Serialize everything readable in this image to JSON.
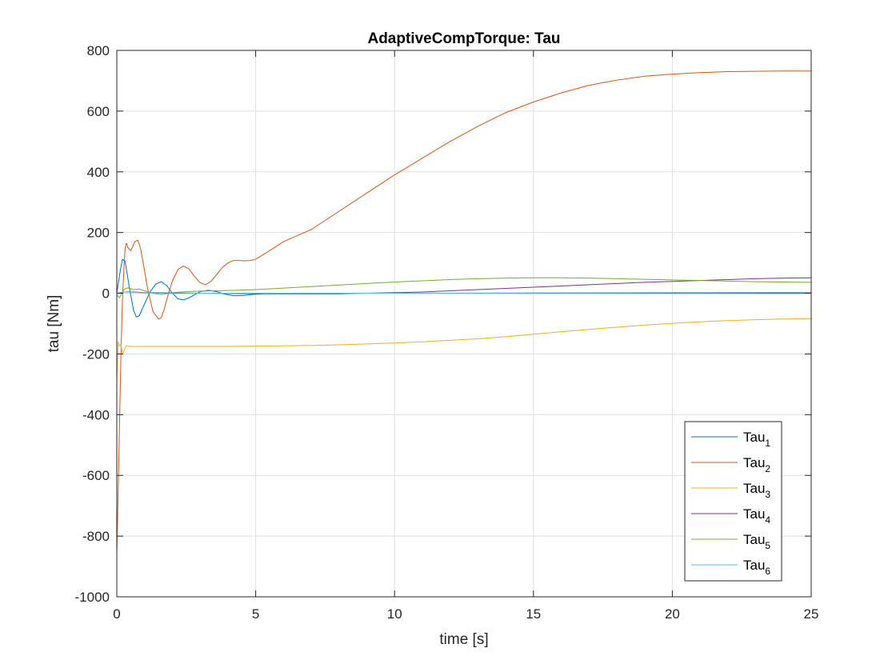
{
  "chart_data": {
    "type": "line",
    "title": "AdaptiveCompTorque: Tau",
    "xlabel": "time [s]",
    "ylabel": "tau [Nm]",
    "xlim": [
      0,
      25
    ],
    "ylim": [
      -1000,
      800
    ],
    "xticks": [
      0,
      5,
      10,
      15,
      20,
      25
    ],
    "yticks": [
      -1000,
      -800,
      -600,
      -400,
      -200,
      0,
      200,
      400,
      600,
      800
    ],
    "grid": true,
    "legend_position": "bottom-right",
    "series": [
      {
        "name": "Tau",
        "subscript": "1",
        "color": "#0072BD",
        "x": [
          0,
          0.1,
          0.2,
          0.3,
          0.45,
          0.6,
          0.7,
          0.8,
          1.0,
          1.2,
          1.4,
          1.6,
          1.8,
          2.0,
          2.2,
          2.4,
          2.6,
          2.8,
          3.0,
          3.3,
          3.6,
          3.9,
          4.2,
          4.5,
          5.0,
          5.5,
          6.0,
          7,
          10,
          15,
          20,
          25
        ],
        "y": [
          0,
          60,
          112,
          105,
          20,
          -55,
          -78,
          -75,
          -35,
          5,
          30,
          38,
          25,
          0,
          -18,
          -22,
          -15,
          -5,
          5,
          10,
          5,
          -3,
          -8,
          -8,
          -3,
          0,
          0,
          0,
          0,
          0,
          0,
          0
        ]
      },
      {
        "name": "Tau",
        "subscript": "2",
        "color": "#D95319",
        "x": [
          0,
          0.05,
          0.1,
          0.15,
          0.2,
          0.25,
          0.3,
          0.35,
          0.4,
          0.5,
          0.55,
          0.65,
          0.75,
          0.85,
          0.95,
          1.1,
          1.3,
          1.5,
          1.6,
          1.7,
          1.8,
          2.0,
          2.2,
          2.4,
          2.6,
          2.8,
          3.0,
          3.2,
          3.4,
          3.6,
          3.8,
          4.0,
          4.2,
          4.4,
          4.6,
          4.8,
          5.0,
          5.5,
          6.0,
          6.5,
          7.0,
          8,
          9,
          10,
          11,
          12,
          13,
          14,
          15,
          16,
          17,
          18,
          19,
          20,
          21,
          22,
          23,
          24,
          25
        ],
        "y": [
          -860,
          -650,
          -420,
          -200,
          -30,
          70,
          150,
          165,
          150,
          140,
          150,
          170,
          175,
          150,
          100,
          20,
          -60,
          -85,
          -80,
          -55,
          -20,
          40,
          78,
          90,
          80,
          55,
          35,
          28,
          40,
          62,
          85,
          100,
          108,
          108,
          107,
          108,
          112,
          140,
          170,
          190,
          210,
          270,
          330,
          390,
          445,
          500,
          550,
          595,
          630,
          660,
          685,
          702,
          715,
          722,
          727,
          730,
          731,
          732,
          732
        ]
      },
      {
        "name": "Tau",
        "subscript": "3",
        "color": "#EDB120",
        "x": [
          0,
          0.05,
          0.1,
          0.15,
          0.2,
          0.25,
          0.3,
          0.35,
          0.45,
          0.6,
          0.8,
          1,
          2,
          3,
          4,
          5,
          6,
          7,
          8,
          9,
          10,
          11,
          12,
          13,
          14,
          15,
          16,
          17,
          18,
          19,
          20,
          21,
          22,
          23,
          24,
          25
        ],
        "y": [
          -290,
          -160,
          -175,
          -168,
          -200,
          -192,
          -178,
          -173,
          -175,
          -175,
          -175,
          -175,
          -175,
          -175,
          -175,
          -174,
          -173,
          -172,
          -170,
          -167,
          -164,
          -160,
          -155,
          -150,
          -143,
          -135,
          -127,
          -119,
          -112,
          -105,
          -99,
          -94,
          -90,
          -87,
          -85,
          -84
        ]
      },
      {
        "name": "Tau",
        "subscript": "4",
        "color": "#7E2F8E",
        "x": [
          0,
          0.2,
          0.4,
          0.6,
          1,
          2,
          3,
          4,
          5,
          6,
          7,
          8,
          9,
          10,
          11,
          12,
          13,
          14,
          15,
          16,
          17,
          18,
          19,
          20,
          21,
          22,
          23,
          24,
          25
        ],
        "y": [
          0,
          3,
          5,
          4,
          2,
          1,
          0,
          -1,
          -2,
          -2,
          -2,
          -2,
          0,
          2,
          4,
          8,
          12,
          16,
          20,
          24,
          28,
          32,
          36,
          39,
          42,
          45,
          48,
          50,
          51
        ]
      },
      {
        "name": "Tau",
        "subscript": "5",
        "color": "#77AC30",
        "x": [
          0,
          0.1,
          0.2,
          0.3,
          0.4,
          0.6,
          0.8,
          1.0,
          1.2,
          1.4,
          1.6,
          1.8,
          2.0,
          2.5,
          3,
          4,
          5,
          6,
          7,
          8,
          9,
          10,
          11,
          12,
          13,
          14,
          15,
          16,
          17,
          18,
          19,
          20,
          21,
          22,
          23,
          24,
          25
        ],
        "y": [
          -5,
          -15,
          5,
          15,
          18,
          12,
          14,
          8,
          2,
          -2,
          -4,
          -2,
          2,
          5,
          7,
          9,
          12,
          17,
          22,
          27,
          32,
          37,
          41,
          45,
          48,
          50,
          51,
          51,
          50,
          48,
          46,
          44,
          42,
          40,
          38,
          37,
          36
        ]
      },
      {
        "name": "Tau",
        "subscript": "6",
        "color": "#4DBEEE",
        "x": [
          0,
          0.2,
          0.4,
          0.6,
          1,
          1.5,
          2,
          3,
          5,
          10,
          15,
          20,
          25
        ],
        "y": [
          0,
          3,
          5,
          3,
          1,
          0,
          -1,
          0,
          0,
          0,
          1,
          2,
          3
        ]
      }
    ]
  }
}
